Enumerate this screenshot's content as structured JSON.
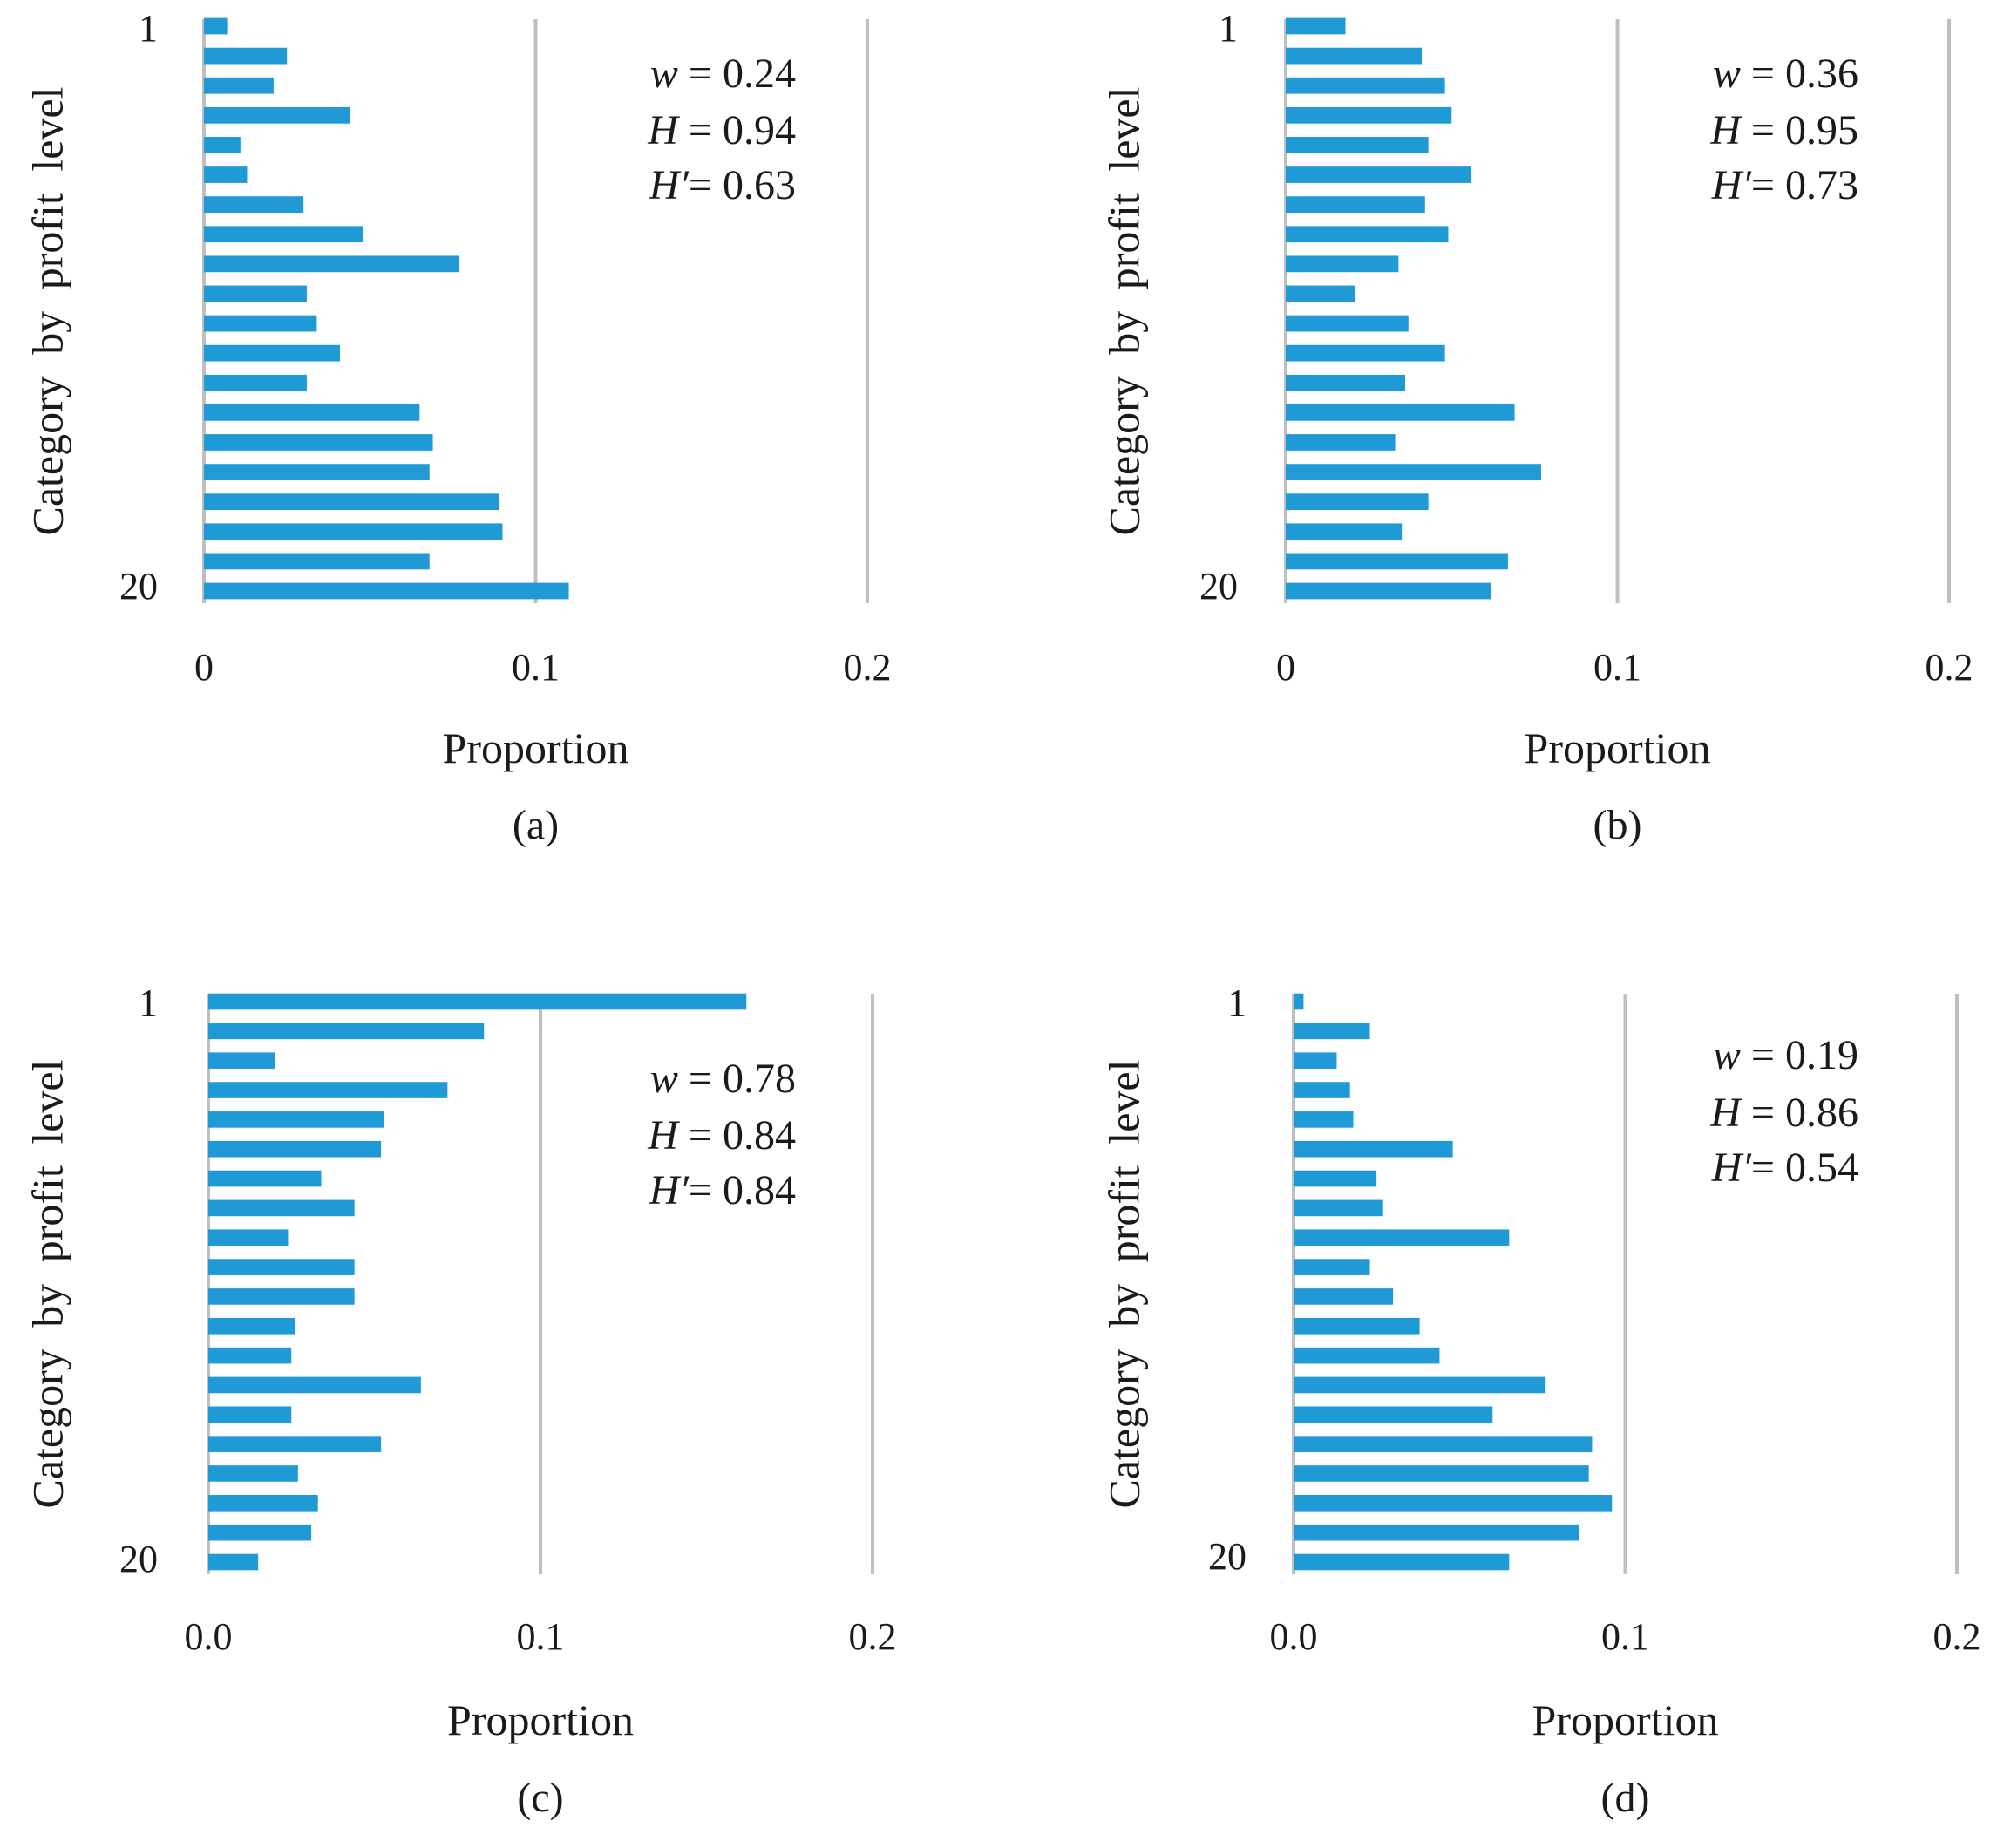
{
  "figure": {
    "style": {
      "bar_color": "#1f9ad6",
      "grid_color": "#bfbfbf",
      "text_color": "#1a1a1a"
    }
  },
  "chart_data": [
    {
      "panel": "(a)",
      "type": "bar",
      "orientation": "horizontal",
      "ylabel": "Category by profit level",
      "xlabel": "Proportion",
      "categories": [
        1,
        2,
        3,
        4,
        5,
        6,
        7,
        8,
        9,
        10,
        11,
        12,
        13,
        14,
        15,
        16,
        17,
        18,
        19,
        20
      ],
      "y_tick_labels": [
        "1",
        "20"
      ],
      "x_ticks": [
        "0",
        "0.1",
        "0.2"
      ],
      "xlim": [
        0,
        0.2
      ],
      "grid": "vertical",
      "values": [
        0.007,
        0.025,
        0.021,
        0.044,
        0.011,
        0.013,
        0.03,
        0.048,
        0.077,
        0.031,
        0.034,
        0.041,
        0.031,
        0.065,
        0.069,
        0.068,
        0.089,
        0.09,
        0.068,
        0.11
      ],
      "annotation": [
        {
          "sym": "w",
          "text": " = 0.24"
        },
        {
          "sym": "H",
          "text": " = 0.94"
        },
        {
          "sym": "H′",
          "text": "= 0.63"
        }
      ]
    },
    {
      "panel": "(b)",
      "type": "bar",
      "orientation": "horizontal",
      "ylabel": "Category by profit level",
      "xlabel": "Proportion",
      "categories": [
        1,
        2,
        3,
        4,
        5,
        6,
        7,
        8,
        9,
        10,
        11,
        12,
        13,
        14,
        15,
        16,
        17,
        18,
        19,
        20
      ],
      "y_tick_labels": [
        "1",
        "20"
      ],
      "x_ticks": [
        "0",
        "0.1",
        "0.2"
      ],
      "xlim": [
        0,
        0.2
      ],
      "grid": "vertical",
      "values": [
        0.018,
        0.041,
        0.048,
        0.05,
        0.043,
        0.056,
        0.042,
        0.049,
        0.034,
        0.021,
        0.037,
        0.048,
        0.036,
        0.069,
        0.033,
        0.077,
        0.043,
        0.035,
        0.067,
        0.062
      ],
      "annotation": [
        {
          "sym": "w",
          "text": " = 0.36"
        },
        {
          "sym": "H",
          "text": " = 0.95"
        },
        {
          "sym": "H′",
          "text": "= 0.73"
        }
      ]
    },
    {
      "panel": "(c)",
      "type": "bar",
      "orientation": "horizontal",
      "ylabel": "Category by profit level",
      "xlabel": "Proportion",
      "categories": [
        1,
        2,
        3,
        4,
        5,
        6,
        7,
        8,
        9,
        10,
        11,
        12,
        13,
        14,
        15,
        16,
        17,
        18,
        19,
        20
      ],
      "y_tick_labels": [
        "1",
        "20"
      ],
      "x_ticks": [
        "0.0",
        "0.1",
        "0.2"
      ],
      "xlim": [
        0,
        0.2
      ],
      "grid": "vertical",
      "values": [
        0.162,
        0.083,
        0.02,
        0.072,
        0.053,
        0.052,
        0.034,
        0.044,
        0.024,
        0.044,
        0.044,
        0.026,
        0.025,
        0.064,
        0.025,
        0.052,
        0.027,
        0.033,
        0.031,
        0.015
      ],
      "annotation": [
        {
          "sym": "w",
          "text": " = 0.78"
        },
        {
          "sym": "H",
          "text": " = 0.84"
        },
        {
          "sym": "H′",
          "text": "= 0.84"
        }
      ]
    },
    {
      "panel": "(d)",
      "type": "bar",
      "orientation": "horizontal",
      "ylabel": "Category by profit level",
      "xlabel": "Proportion",
      "categories": [
        1,
        2,
        3,
        4,
        5,
        6,
        7,
        8,
        9,
        10,
        11,
        12,
        13,
        14,
        15,
        16,
        17,
        18,
        19,
        20
      ],
      "y_tick_labels": [
        "1",
        "20"
      ],
      "x_ticks": [
        "0.0",
        "0.1",
        "0.2"
      ],
      "xlim": [
        0,
        0.2
      ],
      "grid": "vertical",
      "values": [
        0.003,
        0.023,
        0.013,
        0.017,
        0.018,
        0.048,
        0.025,
        0.027,
        0.065,
        0.023,
        0.03,
        0.038,
        0.044,
        0.076,
        0.06,
        0.09,
        0.089,
        0.096,
        0.086,
        0.065
      ],
      "annotation": [
        {
          "sym": "w",
          "text": " = 0.19"
        },
        {
          "sym": "H",
          "text": " = 0.86"
        },
        {
          "sym": "H′",
          "text": "= 0.54"
        }
      ]
    }
  ]
}
